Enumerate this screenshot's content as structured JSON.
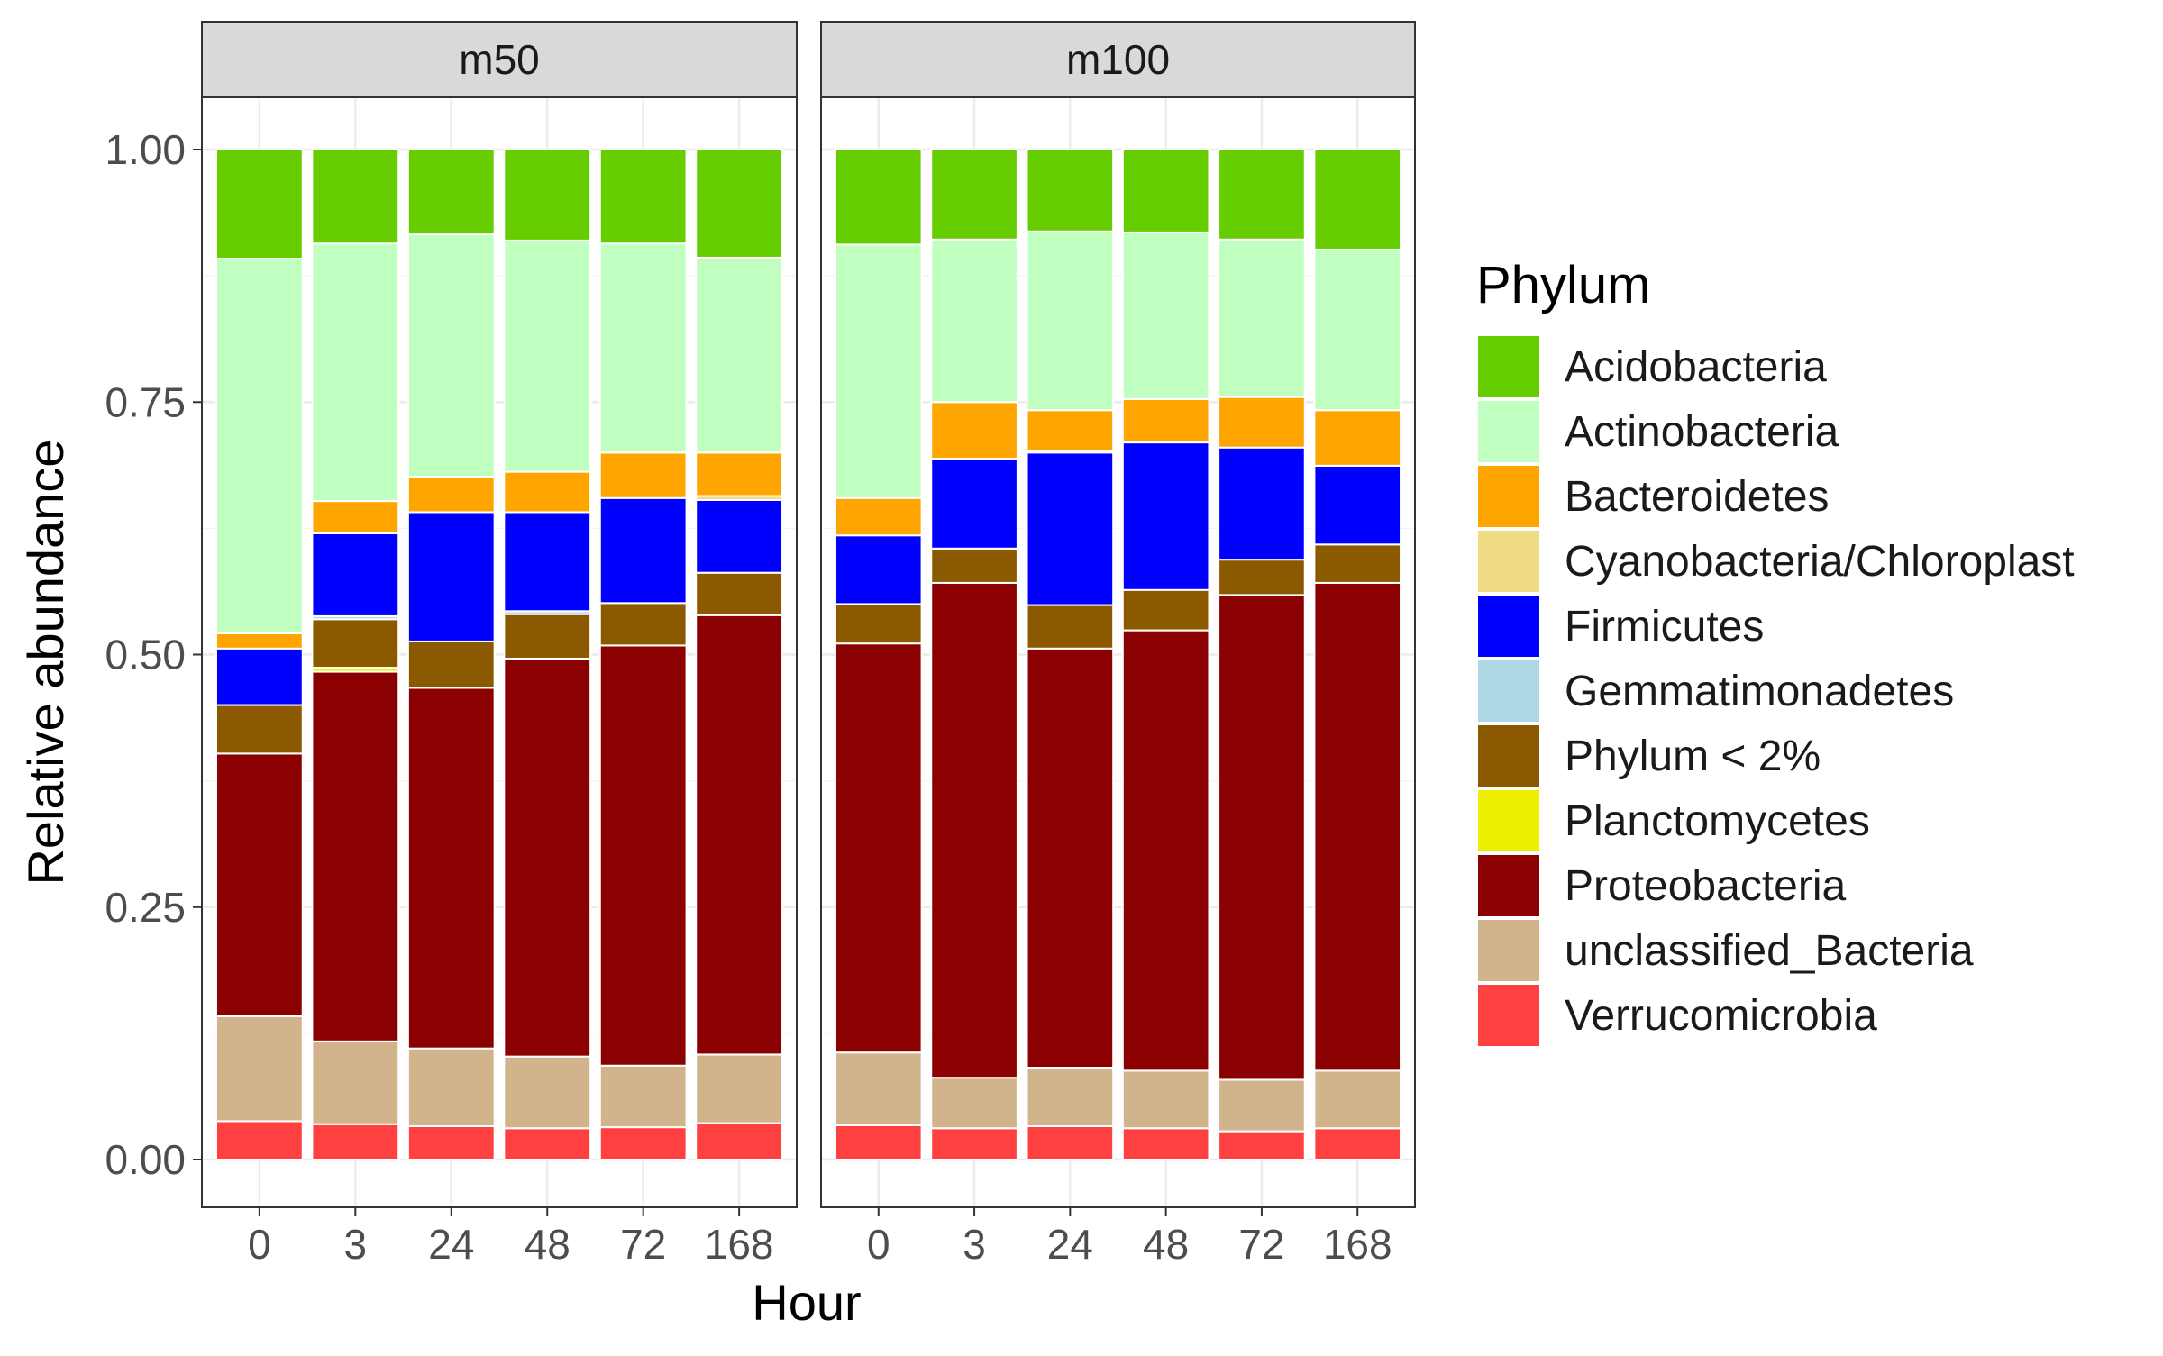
{
  "chart_data": {
    "type": "bar",
    "stacked": true,
    "facets": [
      "m50",
      "m100"
    ],
    "categories": [
      "0",
      "3",
      "24",
      "48",
      "72",
      "168"
    ],
    "xlabel": "Hour",
    "ylabel": "Relative abundance",
    "ylim": [
      0,
      1
    ],
    "yticks": [
      "0.00",
      "0.25",
      "0.50",
      "0.75",
      "1.00"
    ],
    "grid": true,
    "legend": {
      "title": "Phylum",
      "position": "right"
    },
    "series": [
      {
        "name": "Verrucomicrobia",
        "color": "#ff4040",
        "values": {
          "m50": [
            0.038,
            0.035,
            0.033,
            0.031,
            0.032,
            0.036
          ],
          "m100": [
            0.034,
            0.031,
            0.033,
            0.031,
            0.028,
            0.031
          ]
        }
      },
      {
        "name": "unclassified_Bacteria",
        "color": "#d2b48c",
        "values": {
          "m50": [
            0.104,
            0.082,
            0.077,
            0.071,
            0.061,
            0.068
          ],
          "m100": [
            0.072,
            0.05,
            0.058,
            0.057,
            0.051,
            0.057
          ]
        }
      },
      {
        "name": "Proteobacteria",
        "color": "#8b0000",
        "values": {
          "m50": [
            0.26,
            0.366,
            0.357,
            0.394,
            0.416,
            0.435
          ],
          "m100": [
            0.405,
            0.49,
            0.415,
            0.436,
            0.48,
            0.483
          ]
        }
      },
      {
        "name": "Planctomycetes",
        "color": "#eeee00",
        "values": {
          "m50": [
            0,
            0.004,
            0,
            0,
            0,
            0
          ],
          "m100": [
            0,
            0,
            0,
            0,
            0,
            0
          ]
        }
      },
      {
        "name": "Phylum < 2%",
        "color": "#8b5a00",
        "values": {
          "m50": [
            0.048,
            0.048,
            0.046,
            0.044,
            0.042,
            0.042
          ],
          "m100": [
            0.039,
            0.034,
            0.043,
            0.04,
            0.035,
            0.038
          ]
        }
      },
      {
        "name": "Gemmatimonadetes",
        "color": "#add8e6",
        "values": {
          "m50": [
            0,
            0.003,
            0,
            0.003,
            0,
            0
          ],
          "m100": [
            0,
            0,
            0,
            0,
            0,
            0
          ]
        }
      },
      {
        "name": "Firmicutes",
        "color": "#0000ff",
        "values": {
          "m50": [
            0.056,
            0.082,
            0.128,
            0.098,
            0.104,
            0.072
          ],
          "m100": [
            0.068,
            0.089,
            0.151,
            0.146,
            0.111,
            0.078
          ]
        }
      },
      {
        "name": "Cyanobacteria/Chloroplast",
        "color": "#f0dc82",
        "values": {
          "m50": [
            0,
            0,
            0,
            0,
            0,
            0.004
          ],
          "m100": [
            0,
            0,
            0.002,
            0,
            0,
            0
          ]
        }
      },
      {
        "name": "Bacteroidetes",
        "color": "#ffa500",
        "values": {
          "m50": [
            0.015,
            0.032,
            0.035,
            0.04,
            0.045,
            0.043
          ],
          "m100": [
            0.037,
            0.056,
            0.04,
            0.043,
            0.05,
            0.055
          ]
        }
      },
      {
        "name": "Actinobacteria",
        "color": "#c1ffc1",
        "values": {
          "m50": [
            0.371,
            0.255,
            0.24,
            0.229,
            0.207,
            0.193
          ],
          "m100": [
            0.251,
            0.161,
            0.177,
            0.165,
            0.156,
            0.159
          ]
        }
      },
      {
        "name": "Acidobacteria",
        "color": "#66cd00",
        "values": {
          "m50": [
            0.108,
            0.093,
            0.084,
            0.09,
            0.093,
            0.107
          ],
          "m100": [
            0.094,
            0.089,
            0.081,
            0.082,
            0.089,
            0.099
          ]
        }
      }
    ],
    "legend_order": [
      "Acidobacteria",
      "Actinobacteria",
      "Bacteroidetes",
      "Cyanobacteria/Chloroplast",
      "Firmicutes",
      "Gemmatimonadetes",
      "Phylum < 2%",
      "Planctomycetes",
      "Proteobacteria",
      "unclassified_Bacteria",
      "Verrucomicrobia"
    ]
  }
}
